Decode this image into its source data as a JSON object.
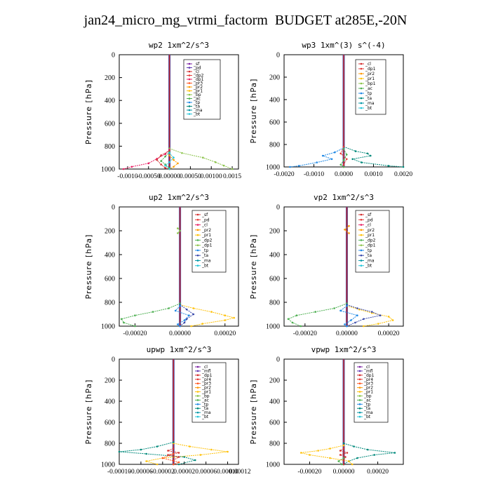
{
  "title": "jan24_micro_mg_vtrmi_factorm  BUDGET at285E,-20N",
  "ylabel": "Pressure [hPa]",
  "chart_data": [
    {
      "id": "wp2",
      "type": "line",
      "title": "wp2  1xm^2/s^3",
      "ylabel": "Pressure [hPa]",
      "ylim": [
        1000,
        0
      ],
      "yticks": [
        0,
        200,
        400,
        600,
        800,
        1000
      ],
      "xlim": [
        -0.0012,
        0.00165
      ],
      "xticks": [
        -0.001,
        -0.0005,
        0.0,
        0.0005,
        0.001,
        0.0015
      ],
      "xtick_labels": [
        "-0.0010",
        "-0.00050",
        "0.00000",
        "0.00050",
        "0.00100",
        "0.0015"
      ],
      "legend": [
        "_sf",
        "_pd",
        "_cl",
        "_dp2",
        "_dp1",
        "_pr3",
        "_pr2",
        "_pr1",
        "_bp",
        "_ac",
        "_tp",
        "_ta",
        "_ma",
        "_bt"
      ],
      "colors": [
        "#7B1FA2",
        "#5E35B1",
        "#D32F2F",
        "#E53935",
        "#E91E63",
        "#FF5722",
        "#FFA000",
        "#FFC107",
        "#8BC34A",
        "#4CAF50",
        "#1E88E5",
        "#00897B",
        "#0097A7",
        "#26C6DA"
      ],
      "series": [
        {
          "name": "_bp",
          "p": [
            820,
            860,
            900,
            940,
            970,
            1000
          ],
          "v": [
            0,
            0.0003,
            0.0008,
            0.0011,
            0.0013,
            0.0015
          ]
        },
        {
          "name": "_dp1",
          "p": [
            830,
            870,
            910,
            950,
            980,
            1000
          ],
          "v": [
            0,
            -0.0001,
            -0.0003,
            -0.0005,
            -0.0009,
            -0.0011
          ]
        },
        {
          "name": "_cl",
          "p": [
            840,
            880,
            920,
            960,
            990,
            1000
          ],
          "v": [
            0,
            -0.0002,
            -0.0003,
            -0.0002,
            -0.0001,
            0
          ]
        },
        {
          "name": "_ac",
          "p": [
            850,
            890,
            930,
            960,
            990,
            1000
          ],
          "v": [
            0,
            -0.0001,
            -0.0002,
            -0.0001,
            0,
            0
          ]
        },
        {
          "name": "_pr2",
          "p": [
            880,
            920,
            950,
            980,
            1000
          ],
          "v": [
            0,
            0.0001,
            0.0002,
            0.0001,
            0
          ]
        },
        {
          "name": "_bt",
          "p": [
            860,
            900,
            940,
            970,
            1000
          ],
          "v": [
            0,
            0.0001,
            0,
            -0.0001,
            0
          ]
        }
      ]
    },
    {
      "id": "wp3",
      "type": "line",
      "title": "wp3  1xm^(3) s^(-4)",
      "ylabel": "Pressure [hPa]",
      "ylim": [
        1000,
        0
      ],
      "yticks": [
        0,
        200,
        400,
        600,
        800,
        1000
      ],
      "xlim": [
        -0.002,
        0.002
      ],
      "xticks": [
        -0.002,
        -0.001,
        0.0,
        0.001,
        0.002
      ],
      "xtick_labels": [
        "-0.0020",
        "-0.0010",
        "0.0000",
        "0.0010",
        "0.0020"
      ],
      "legend": [
        "_cl",
        "_dp1",
        "_pr2",
        "_pr1",
        "_bp1",
        "_ac",
        "_tp",
        "_ta",
        "_ma",
        "_bt"
      ],
      "colors": [
        "#D32F2F",
        "#E53935",
        "#FF9800",
        "#FFC107",
        "#8BC34A",
        "#4CAF50",
        "#1E88E5",
        "#00897B",
        "#0097A7",
        "#26C6DA"
      ],
      "series": [
        {
          "name": "_ta",
          "p": [
            820,
            860,
            880,
            900,
            930,
            960,
            990,
            1000
          ],
          "v": [
            0,
            0.0004,
            0.0008,
            0.0009,
            0.0003,
            0.0006,
            0.0015,
            0.002
          ]
        },
        {
          "name": "_tp",
          "p": [
            830,
            870,
            900,
            930,
            960,
            990,
            1000
          ],
          "v": [
            0,
            -0.0003,
            -0.0007,
            -0.0004,
            -0.0009,
            -0.0015,
            -0.0018
          ]
        },
        {
          "name": "_dp1",
          "p": [
            820,
            880,
            930,
            980,
            1000
          ],
          "v": [
            0,
            -0.0001,
            0.0001,
            0,
            0
          ]
        },
        {
          "name": "_ac",
          "p": [
            840,
            890,
            940,
            980,
            1000
          ],
          "v": [
            0,
            0.0001,
            0,
            -0.0001,
            0
          ]
        }
      ]
    },
    {
      "id": "up2",
      "type": "line",
      "title": "up2  1xm^2/s^3",
      "ylabel": "Pressure [hPa]",
      "ylim": [
        1000,
        0
      ],
      "yticks": [
        0,
        200,
        400,
        600,
        800,
        1000
      ],
      "xlim": [
        -0.00027,
        0.00026
      ],
      "xticks": [
        -0.0002,
        0.0,
        0.0002
      ],
      "xtick_labels": [
        "-0.00020",
        "0.00000",
        "0.00020"
      ],
      "legend": [
        "_sf",
        "_pd",
        "_cl",
        "_pr2",
        "_pr1",
        "_dp2",
        "_dp1",
        "_tp",
        "_ta",
        "_ma",
        "_bt"
      ],
      "colors": [
        "#D32F2F",
        "#E53935",
        "#E91E63",
        "#FF9800",
        "#FFC107",
        "#4CAF50",
        "#8BC34A",
        "#1E88E5",
        "#3949AB",
        "#0097A7",
        "#26C6DA"
      ],
      "series": [
        {
          "name": "_pr1",
          "p": [
            820,
            850,
            880,
            910,
            930,
            950,
            980,
            1000
          ],
          "v": [
            0,
            6e-05,
            0.00014,
            0.0002,
            0.00024,
            0.0002,
            0.0001,
            5e-05
          ]
        },
        {
          "name": "_dp2",
          "p": [
            810,
            850,
            880,
            910,
            940,
            970,
            1000
          ],
          "v": [
            0,
            -5e-05,
            -0.00012,
            -0.0002,
            -0.00026,
            -0.00025,
            -0.0002
          ]
        },
        {
          "name": "_ta",
          "p": [
            820,
            860,
            900,
            940,
            970,
            1000
          ],
          "v": [
            0,
            3e-05,
            6e-05,
            3e-05,
            2e-05,
            0
          ]
        },
        {
          "name": "_dp1",
          "p": [
            180,
            200,
            220
          ],
          "v": [
            -1e-05,
            0,
            -1e-05
          ]
        },
        {
          "name": "_tp",
          "p": [
            830,
            870,
            910,
            950,
            985,
            1000
          ],
          "v": [
            0,
            -2e-05,
            4e-05,
            2e-05,
            -1e-05,
            0
          ]
        }
      ]
    },
    {
      "id": "vp2",
      "type": "line",
      "title": "vp2  1xm^2/s^3",
      "ylabel": "Pressure [hPa]",
      "ylim": [
        1000,
        0
      ],
      "yticks": [
        0,
        200,
        400,
        600,
        800,
        1000
      ],
      "xlim": [
        -0.0003,
        0.00027
      ],
      "xticks": [
        -0.0002,
        0.0,
        0.0002
      ],
      "xtick_labels": [
        "-0.00020",
        "0.00000",
        "0.00020"
      ],
      "legend": [
        "_sf",
        "_pd",
        "_cl",
        "_pr2",
        "_pr1",
        "_dp2",
        "_dp1",
        "_tp",
        "_ta",
        "_ma",
        "_bt"
      ],
      "colors": [
        "#D32F2F",
        "#E53935",
        "#E91E63",
        "#FF9800",
        "#FFC107",
        "#4CAF50",
        "#8BC34A",
        "#1E88E5",
        "#3949AB",
        "#0097A7",
        "#26C6DA"
      ],
      "series": [
        {
          "name": "_pr1",
          "p": [
            830,
            860,
            890,
            920,
            950,
            980,
            1000
          ],
          "v": [
            0,
            6e-05,
            0.00012,
            0.0002,
            0.00022,
            0.00015,
            8e-05
          ]
        },
        {
          "name": "_dp2",
          "p": [
            810,
            850,
            880,
            910,
            940,
            970,
            1000
          ],
          "v": [
            0,
            -6e-05,
            -0.00015,
            -0.00024,
            -0.00028,
            -0.00026,
            -0.00022
          ]
        },
        {
          "name": "_ta",
          "p": [
            820,
            850,
            880,
            910,
            940,
            970,
            1000
          ],
          "v": [
            0,
            5e-05,
            0.00012,
            0.00016,
            8e-05,
            4e-05,
            0
          ]
        },
        {
          "name": "_pr2",
          "p": [
            160,
            190,
            220
          ],
          "v": [
            1e-05,
            -1e-05,
            1e-05
          ]
        },
        {
          "name": "_tp",
          "p": [
            830,
            870,
            910,
            950,
            985,
            1000
          ],
          "v": [
            0,
            -3e-05,
            5e-05,
            2e-05,
            -1e-05,
            0
          ]
        }
      ]
    },
    {
      "id": "upwp",
      "type": "line",
      "title": "upwp  1xm^2/s^3",
      "ylabel": "Pressure [hPa]",
      "ylim": [
        1000,
        0
      ],
      "yticks": [
        0,
        200,
        400,
        600,
        800,
        1000
      ],
      "xlim": [
        -0.0001,
        0.00012
      ],
      "xticks": [
        -0.0001,
        -6e-05,
        -2e-05,
        2e-05,
        6e-05,
        0.0001
      ],
      "xtick_labels": [
        "-0.00010",
        "-0.00006",
        "-0.00002",
        "0.00002",
        "0.00006",
        "0.00010"
      ],
      "extra_label": "0.00012",
      "legend": [
        "_cl",
        "_mfl",
        "_dp1",
        "_pr4",
        "_pr3",
        "_pr2",
        "_pr1",
        "_bp",
        "_ac",
        "_tp",
        "_ta",
        "_ma",
        "_bt"
      ],
      "colors": [
        "#7B1FA2",
        "#5E35B1",
        "#D32F2F",
        "#E53935",
        "#FF5722",
        "#FF9800",
        "#FFC107",
        "#8BC34A",
        "#4CAF50",
        "#1E88E5",
        "#00897B",
        "#0097A7",
        "#26C6DA"
      ],
      "series": [
        {
          "name": "_pr1",
          "p": [
            800,
            830,
            860,
            880,
            910,
            940,
            970,
            1000
          ],
          "v": [
            0,
            3e-05,
            7e-05,
            0.0001,
            5e-05,
            -2e-05,
            -5e-05,
            -3e-05
          ]
        },
        {
          "name": "_ta",
          "p": [
            790,
            830,
            860,
            880,
            900,
            930,
            960,
            1000
          ],
          "v": [
            0,
            -3e-05,
            -6e-05,
            -0.0001,
            -5e-05,
            2e-05,
            4e-05,
            1e-05
          ]
        },
        {
          "name": "_dp1",
          "p": [
            850,
            870,
            890,
            910,
            930,
            960,
            1000
          ],
          "v": [
            0,
            -1e-05,
            1e-05,
            -1e-05,
            1e-05,
            0,
            0
          ]
        },
        {
          "name": "_pr3",
          "p": [
            900,
            940,
            980,
            1000
          ],
          "v": [
            0,
            -2e-05,
            1e-05,
            0
          ]
        }
      ]
    },
    {
      "id": "vpwp",
      "type": "line",
      "title": "vpwp  1xm^2/s^3",
      "ylabel": "Pressure [hPa]",
      "ylim": [
        1000,
        0
      ],
      "yticks": [
        0,
        200,
        400,
        600,
        800,
        1000
      ],
      "xlim": [
        -0.00035,
        0.00035
      ],
      "xticks": [
        -0.0002,
        0.0,
        0.0002
      ],
      "xtick_labels": [
        "-0.00020",
        "0.00000",
        "0.00020"
      ],
      "legend": [
        "_cl",
        "_mfl",
        "_dp1",
        "_pr4",
        "_pr3",
        "_pr2",
        "_pr1",
        "_bp",
        "_ac",
        "_tp",
        "_ta",
        "_ma",
        "_bt"
      ],
      "colors": [
        "#7B1FA2",
        "#5E35B1",
        "#D32F2F",
        "#E53935",
        "#FF5722",
        "#FF9800",
        "#FFC107",
        "#8BC34A",
        "#4CAF50",
        "#1E88E5",
        "#00897B",
        "#0097A7",
        "#26C6DA"
      ],
      "series": [
        {
          "name": "_ta",
          "p": [
            800,
            830,
            860,
            890,
            910,
            940,
            970,
            1000
          ],
          "v": [
            0,
            6e-05,
            0.00014,
            0.0003,
            0.00018,
            8e-05,
            3e-05,
            0
          ]
        },
        {
          "name": "_pr1",
          "p": [
            820,
            850,
            870,
            890,
            910,
            940,
            970,
            1000
          ],
          "v": [
            0,
            -8e-05,
            -0.00015,
            -0.00025,
            -0.0002,
            -8e-05,
            3e-05,
            5e-05
          ]
        },
        {
          "name": "_dp1",
          "p": [
            850,
            870,
            890,
            910,
            930,
            960,
            1000
          ],
          "v": [
            0,
            -2e-05,
            2e-05,
            -2e-05,
            1e-05,
            0,
            0
          ]
        },
        {
          "name": "_ac",
          "p": [
            940,
            970,
            1000
          ],
          "v": [
            0,
            -3e-05,
            -1e-05
          ]
        }
      ]
    }
  ]
}
